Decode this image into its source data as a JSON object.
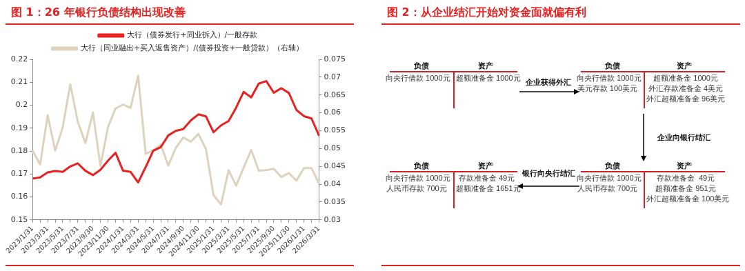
{
  "chart_data": [
    {
      "type": "line",
      "title": "图 1：26 年银行负债结构出现改善",
      "categories": [
        "2023/1/31",
        null,
        "2023/3/31",
        null,
        "2023/5/31",
        null,
        "2023/7/31",
        null,
        "2023/9/30",
        null,
        "2023/11/30",
        null,
        "2024/1/31",
        null,
        "2024/3/31",
        null,
        "2024/5/31",
        null,
        "2024/7/31",
        null,
        "2024/9/30",
        null,
        "2024/11/30",
        null,
        "2025/1/31",
        null,
        "2025/3/31",
        null,
        "2025/5/31",
        null,
        "2025/7/31",
        null,
        "2025/9/30",
        null,
        "2025/11/30",
        null,
        "2026/1/31",
        null,
        "2026/3/31"
      ],
      "series": [
        {
          "name": "大行（债券发行+同业拆入）/一般存款",
          "color": "#e8201f",
          "values": [
            0.168,
            0.1685,
            0.1707,
            0.1713,
            0.1709,
            0.1733,
            0.1746,
            0.1714,
            0.1695,
            0.1718,
            0.1758,
            0.1792,
            0.1714,
            0.1709,
            0.1663,
            0.173,
            0.1801,
            0.1817,
            0.1868,
            0.1888,
            0.1896,
            0.1934,
            0.196,
            0.1951,
            0.1882,
            0.1912,
            0.1931,
            0.1989,
            0.2058,
            0.2034,
            0.2094,
            0.2105,
            0.2054,
            0.2074,
            0.2053,
            0.1979,
            0.1952,
            0.1942,
            0.1867
          ]
        },
        {
          "name": "大行（同业融出+买入返售资产）/(债券投资+一般贷款）（右轴）",
          "color": "#ddd3bd",
          "axis": "y2",
          "values": [
            0.0494,
            0.0455,
            0.0593,
            0.0494,
            0.056,
            0.068,
            0.0575,
            0.0515,
            0.0601,
            0.0451,
            0.056,
            0.0612,
            0.0623,
            0.0614,
            0.0704,
            0.0485,
            0.0494,
            0.0511,
            0.0452,
            0.0502,
            0.0531,
            0.0519,
            0.0541,
            0.0498,
            0.0369,
            0.0343,
            0.0439,
            0.0396,
            0.0446,
            0.0496,
            0.0438,
            0.0439,
            0.0443,
            0.042,
            0.0431,
            0.041,
            0.0445,
            0.0445,
            0.0402
          ]
        }
      ],
      "ylim": [
        0.15,
        0.22
      ],
      "yticks": [
        0.15,
        0.16,
        0.17,
        0.18,
        0.19,
        0.2,
        0.21,
        0.22
      ],
      "y2lim": [
        0.03,
        0.075
      ],
      "y2ticks": [
        0.03,
        0.035,
        0.04,
        0.045,
        0.05,
        0.055,
        0.06,
        0.065,
        0.07,
        0.075
      ],
      "legend": "top"
    },
    {
      "type": "other",
      "title": "图 2：从企业结汇开始对资金面就偏有利",
      "annotations": [
        "负债",
        "资产",
        "向央行借款 1000元",
        "超额准备金 1000元",
        "企业获得外汇",
        "负债",
        "资产",
        "向央行借款 1000元",
        "美元存款 100美元",
        "超额准备金 1000元",
        "外汇存款准备金 4美元",
        "外汇超额准备金 96美元",
        "企业向银行结汇",
        "负债",
        "资产",
        "向央行借款 1000元",
        "人民币存款 700元",
        "存款准备金  49元",
        "超额准备金 951元",
        "外汇超额准备金 100美元",
        "银行向央行结汇",
        "负债",
        "资产",
        "向央行借款 1000元",
        "人民币存款 700元",
        "存款准备金 49元",
        "超额准备金 1651元"
      ]
    }
  ]
}
